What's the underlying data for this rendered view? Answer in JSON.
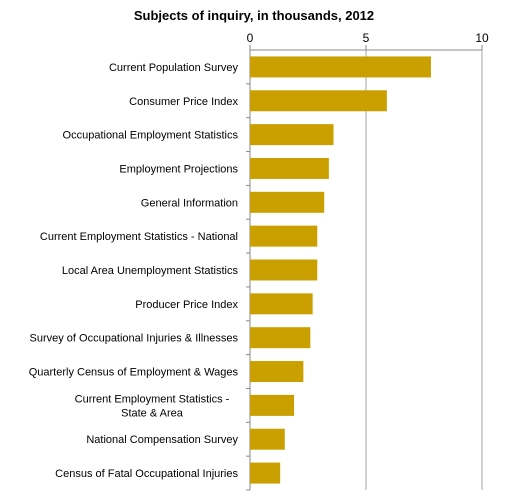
{
  "chart_data": {
    "type": "bar",
    "orientation": "horizontal",
    "title": "Subjects of inquiry, in thousands, 2012",
    "xlabel": "",
    "ylabel": "",
    "xlim": [
      0,
      10
    ],
    "xticks": [
      0,
      5,
      10
    ],
    "tick_labels": [
      "0",
      "5",
      "10"
    ],
    "grid": true,
    "legend": "none",
    "bar_color": "#C9A000",
    "categories": [
      "Current Population Survey",
      "Consumer Price Index",
      "Occupational Employment Statistics",
      "Employment Projections",
      "General Information",
      "Current Employment Statistics - National",
      "Local Area Unemployment Statistics",
      "Producer Price Index",
      "Survey of Occupational Injuries & Illnesses",
      "Quarterly Census of Employment & Wages",
      "Current Employment Statistics - State & Area",
      "National Compensation Survey",
      "Census of Fatal Occupational Injuries"
    ],
    "values": [
      7.8,
      5.9,
      3.6,
      3.4,
      3.2,
      2.9,
      2.9,
      2.7,
      2.6,
      2.3,
      1.9,
      1.5,
      1.3
    ]
  }
}
